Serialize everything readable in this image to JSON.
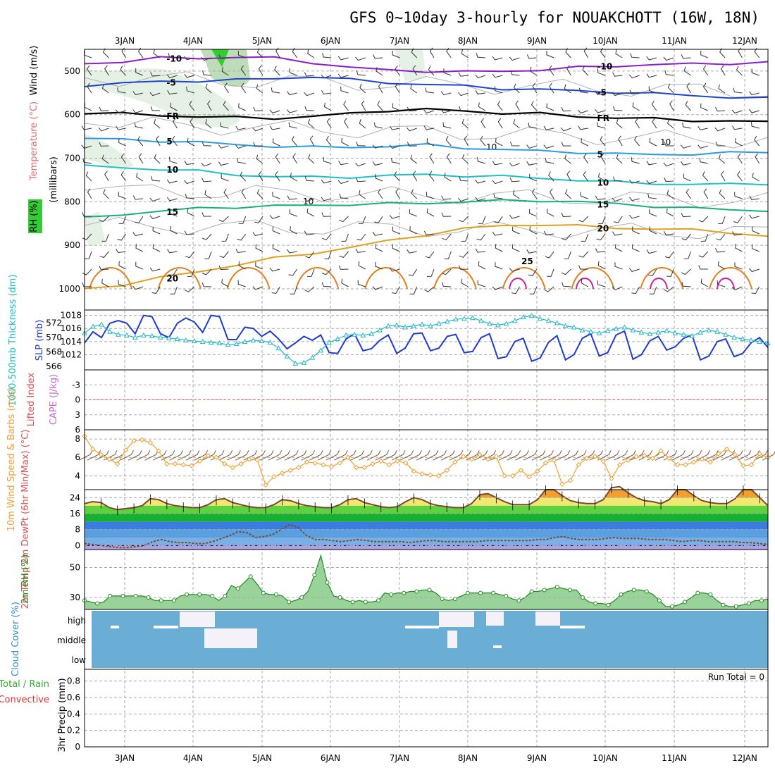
{
  "header": {
    "title": "GFS 0~10day 3-hourly for NOUAKCHOTT (16W, 18N)",
    "run_total": "Run Total = 0"
  },
  "date_labels": [
    "3JAN",
    "4JAN",
    "5JAN",
    "6JAN",
    "7JAN",
    "8JAN",
    "9JAN",
    "10JAN",
    "11JAN",
    "12JAN"
  ],
  "chart_data": [
    {
      "type": "contour",
      "id": "upper-air",
      "ylabel_parts": {
        "wind": "Wind (m/s)",
        "temperature": "Temperature (°C)",
        "rh": "RH (%)",
        "pressure": "(millibars)"
      },
      "y_ticks": [
        "500",
        "600",
        "700",
        "800",
        "900",
        "1000"
      ],
      "ylim": [
        1000,
        450
      ],
      "isotherms": [
        {
          "label": "-10",
          "color": "#8a1fc9",
          "levels": [
            483,
            478,
            470,
            470,
            468,
            470,
            480,
            492,
            498,
            500,
            502,
            500,
            497,
            492,
            488,
            485,
            484,
            482,
            480
          ]
        },
        {
          "label": "-5",
          "color": "#1e44cf",
          "levels": [
            533,
            527,
            525,
            522,
            520,
            518,
            512,
            520,
            527,
            530,
            535,
            540,
            542,
            546,
            548,
            552,
            556,
            560,
            563
          ]
        },
        {
          "label": "FR",
          "color": "#000000",
          "levels": [
            595,
            598,
            602,
            604,
            607,
            608,
            604,
            598,
            590,
            588,
            592,
            596,
            598,
            604,
            607,
            610,
            613,
            615,
            617
          ]
        },
        {
          "label": "5",
          "color": "#2a9de0",
          "levels": [
            654,
            658,
            660,
            663,
            670,
            672,
            675,
            675,
            672,
            670,
            676,
            680,
            684,
            686,
            690,
            692,
            690,
            688,
            686
          ]
        },
        {
          "label": "10",
          "color": "#1ec2c2",
          "levels": [
            718,
            722,
            725,
            730,
            738,
            742,
            744,
            743,
            740,
            738,
            740,
            742,
            746,
            750,
            755,
            758,
            760,
            760,
            758
          ]
        },
        {
          "label": "15",
          "color": "#18b082",
          "levels": [
            838,
            828,
            822,
            815,
            812,
            810,
            808,
            806,
            805,
            803,
            800,
            798,
            797,
            800,
            805,
            810,
            815,
            818,
            820
          ]
        },
        {
          "label": "20",
          "color": "#e0a020",
          "levels": [
            1000,
            990,
            975,
            960,
            945,
            930,
            918,
            905,
            890,
            875,
            862,
            855,
            852,
            856,
            860,
            862,
            865,
            870,
            880
          ]
        }
      ],
      "isotherm_25": {
        "label": "25",
        "color": "#e08020"
      },
      "isotherm_30": {
        "color": "#cc1fa0"
      },
      "rh_label_10": "10"
    },
    {
      "type": "line",
      "id": "slp-thickness",
      "ylabel_left": "1000-500mb Thickness (dm)",
      "ylabel_right": "SLP (mb)",
      "slp_ticks": [
        "1018",
        "1016",
        "1014",
        "1012"
      ],
      "slp_ylim": [
        1010,
        1018.5
      ],
      "thickness_ticks": [
        "572",
        "570",
        "568",
        "566"
      ],
      "thickness_ylim": [
        565.8,
        573.5
      ],
      "slp": [
        1013.8,
        1015.5,
        1014.6,
        1016.8,
        1017.2,
        1016.8,
        1015.2,
        1018.0,
        1017.8,
        1015.2,
        1014.6,
        1016.8,
        1017.6,
        1017.0,
        1015.4,
        1018.0,
        1017.8,
        1014.3,
        1014.3,
        1016.2,
        1016.0,
        1014.8,
        1015.6,
        1014.4,
        1012.9,
        1013.8,
        1014.8,
        1014.2,
        1015.0,
        1012.3,
        1012.2,
        1014.4,
        1015.2,
        1012.6,
        1012.9,
        1014.2,
        1015.0,
        1012.2,
        1013.0,
        1015.2,
        1015.3,
        1012.6,
        1013.0,
        1014.8,
        1015.1,
        1012.3,
        1012.5,
        1014.6,
        1015.2,
        1011.4,
        1011.7,
        1014.0,
        1014.5,
        1011.0,
        1011.5,
        1013.9,
        1014.9,
        1011.2,
        1012.0,
        1014.5,
        1015.2,
        1011.8,
        1012.3,
        1015.0,
        1015.6,
        1011.3,
        1012.0,
        1014.1,
        1014.8,
        1012.7,
        1013.2,
        1014.5,
        1015.0,
        1011.2,
        1011.8,
        1014.0,
        1014.4,
        1011.7,
        1012.2,
        1013.8,
        1014.6,
        1013.1
      ],
      "thickness": [
        570.6,
        571.5,
        571.8,
        570.8,
        570.4,
        570.3,
        570.0,
        570.3,
        570.2,
        570.0,
        569.9,
        569.8,
        569.6,
        569.5,
        569.4,
        569.3,
        569.2,
        569.0,
        569.1,
        569.4,
        569.6,
        569.5,
        569.3,
        568.5,
        567.4,
        566.4,
        566.5,
        567.2,
        568.2,
        569.3,
        569.8,
        570.3,
        570.4,
        570.3,
        570.5,
        571.0,
        571.6,
        571.7,
        571.4,
        571.6,
        571.8,
        571.6,
        571.9,
        572.2,
        572.5,
        572.6,
        572.7,
        572.3,
        571.9,
        571.7,
        571.9,
        572.3,
        572.8,
        573.0,
        572.6,
        572.3,
        572.0,
        571.6,
        571.4,
        571.0,
        570.8,
        570.6,
        570.9,
        571.2,
        571.4,
        571.0,
        570.7,
        570.5,
        570.7,
        570.9,
        570.6,
        570.4,
        570.2,
        570.7,
        571.0,
        570.8,
        570.4,
        570.0,
        569.8,
        569.6,
        569.4,
        569.2
      ]
    },
    {
      "type": "line",
      "id": "cape-li",
      "ylabel_left": "Lifted Index",
      "ylabel_right": "CAPE (J/kg)",
      "li_ticks": [
        "-3",
        "0",
        "3",
        "6"
      ],
      "li_ylim": [
        6,
        -6
      ],
      "zero_line": 0
    },
    {
      "type": "line",
      "id": "wind10m",
      "ylabel": "10m Wind Speed & Barbs (m/s)",
      "y_ticks": [
        "8",
        "6",
        "4"
      ],
      "ylim": [
        2.5,
        9
      ],
      "values": [
        8.3,
        6.9,
        6.3,
        5.8,
        5.3,
        6.8,
        7.8,
        7.9,
        7.6,
        6.7,
        5.3,
        5.3,
        5.2,
        5.1,
        5.6,
        6.2,
        6.0,
        5.3,
        4.9,
        5.3,
        5.8,
        5.7,
        3.0,
        3.9,
        4.3,
        4.6,
        4.9,
        5.5,
        5.4,
        5.2,
        5.0,
        5.4,
        6.0,
        4.9,
        4.9,
        5.3,
        5.6,
        5.2,
        5.6,
        5.4,
        4.5,
        4.2,
        4.1,
        4.0,
        4.6,
        5.5,
        6.1,
        5.8,
        6.3,
        5.8,
        6.1,
        4.0,
        4.0,
        4.6,
        3.9,
        4.5,
        5.4,
        5.7,
        3.1,
        3.5,
        5.2,
        5.9,
        6.1,
        5.6,
        3.7,
        5.2,
        5.7,
        6.1,
        6.2,
        5.9,
        6.7,
        5.9,
        5.2,
        5.2,
        5.5,
        5.8,
        5.5,
        6.4,
        6.9,
        6.3,
        5.1,
        5.2,
        6.4,
        6.0
      ]
    },
    {
      "type": "area",
      "id": "temp2m",
      "ylabel": "2m Temp 2m DewPt (6hr Min/Max) (°C)",
      "y_ticks": [
        "24",
        "16",
        "8",
        "0"
      ],
      "ylim": [
        -2,
        28
      ],
      "temp": [
        21,
        22,
        21.5,
        19,
        18,
        18.5,
        19,
        20,
        23.5,
        23,
        21,
        20,
        19.5,
        19,
        19,
        20.5,
        23,
        23.5,
        21.5,
        20.5,
        19.5,
        19,
        19,
        20.5,
        23,
        22.5,
        21,
        20,
        19.5,
        19,
        19,
        20.5,
        23,
        23.5,
        21.5,
        20.5,
        19.5,
        19,
        19.5,
        22,
        24,
        23,
        21,
        20,
        19.5,
        19,
        19,
        21,
        25.5,
        26,
        24,
        22,
        20.5,
        20.5,
        20.5,
        23,
        28,
        28,
        25,
        22.5,
        21.5,
        21,
        21,
        23,
        29,
        29.5,
        26.5,
        24,
        22.5,
        22,
        21,
        23,
        28,
        28,
        25,
        22.5,
        21.5,
        21,
        21,
        23.5,
        28,
        28,
        24,
        20
      ],
      "dewpt": [
        1,
        0.5,
        0,
        -0.5,
        -1,
        -1,
        -0.5,
        0,
        2,
        3,
        2,
        1.5,
        1.5,
        1,
        1,
        2,
        3.5,
        5,
        7,
        6.5,
        4,
        4.5,
        5.5,
        8,
        10.5,
        9,
        5,
        3,
        3,
        2.5,
        2,
        2.5,
        3,
        2.5,
        2,
        2,
        2,
        2,
        1.5,
        2,
        2.5,
        2.5,
        2,
        2,
        2,
        2,
        2,
        2.5,
        2.5,
        2.5,
        2.5,
        2.5,
        2.5,
        3,
        3,
        4,
        4.5,
        3.5,
        3,
        3,
        3,
        3.5,
        4,
        3.5,
        3.5,
        3.5,
        3,
        3,
        3,
        2.5,
        2,
        2.5,
        2.5,
        2,
        2,
        2,
        2,
        1.5,
        1.5,
        1,
        0.5
      ]
    },
    {
      "type": "area",
      "id": "rh2m",
      "ylabel": "2m RH (%)",
      "y_ticks": [
        "50",
        "30"
      ],
      "ylim": [
        22,
        62
      ],
      "values": [
        28,
        27,
        26,
        27,
        31,
        31,
        31,
        31,
        31,
        31,
        30,
        28,
        28,
        28,
        28,
        31,
        32,
        32,
        32,
        32,
        31,
        28,
        31,
        38,
        36,
        40,
        44,
        39,
        33,
        32,
        32,
        31,
        27,
        28,
        30,
        34,
        45,
        58,
        40,
        31,
        30,
        28,
        27,
        28,
        27,
        27,
        28,
        33,
        32,
        33,
        33,
        34,
        34,
        35,
        35,
        33,
        29,
        28,
        29,
        31,
        33,
        33,
        33,
        33,
        33,
        32,
        31,
        29,
        28,
        30,
        34,
        34,
        35,
        36,
        37,
        36,
        35,
        35,
        30,
        27,
        26,
        26,
        25,
        28,
        32,
        34,
        35,
        35,
        34,
        32,
        28,
        24,
        24,
        25,
        27,
        30,
        33,
        33,
        32,
        28,
        25,
        24,
        24,
        25,
        26,
        28,
        28,
        29
      ]
    },
    {
      "type": "heatmap",
      "id": "cloud",
      "ylabel": "Cloud Cover (%)",
      "levels": [
        "high",
        "middle",
        "low"
      ]
    },
    {
      "type": "bar",
      "id": "precip",
      "ylabel_total_rain": "Total / Rain",
      "ylabel_convective": "Convective",
      "ylabel_precip": "3hr Precip (mm)",
      "y_ticks": [
        "0.8",
        "0.6",
        "0.4",
        "0.2",
        "0"
      ],
      "ylim": [
        0,
        0.9
      ],
      "values": []
    }
  ]
}
